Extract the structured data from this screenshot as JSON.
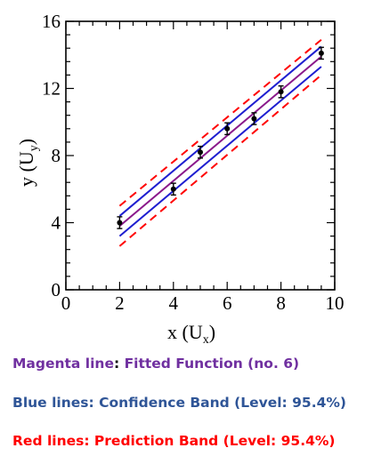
{
  "chart_data": {
    "type": "scatter",
    "xlabel_main": "x (U",
    "xlabel_sub": "x",
    "xlabel_end": ")",
    "ylabel_main": "y (U",
    "ylabel_sub": "y",
    "ylabel_end": ")",
    "xlim": [
      0,
      10
    ],
    "ylim": [
      0,
      16
    ],
    "x_ticks": [
      0,
      2,
      4,
      6,
      8,
      10
    ],
    "y_ticks": [
      0,
      4,
      8,
      12,
      16
    ],
    "points": [
      {
        "x": 2,
        "y": 4.0,
        "err": 0.35
      },
      {
        "x": 4,
        "y": 6.0,
        "err": 0.35
      },
      {
        "x": 5,
        "y": 8.2,
        "err": 0.35
      },
      {
        "x": 6,
        "y": 9.6,
        "err": 0.35
      },
      {
        "x": 7,
        "y": 10.2,
        "err": 0.35
      },
      {
        "x": 8,
        "y": 11.8,
        "err": 0.35
      },
      {
        "x": 9.5,
        "y": 14.1,
        "err": 0.35
      }
    ],
    "fit_line": {
      "x": [
        2,
        9.5
      ],
      "y": [
        3.8,
        13.9
      ],
      "color": "#8b1a8b"
    },
    "confidence_upper": {
      "x": [
        2,
        9.5
      ],
      "y": [
        4.4,
        14.5
      ],
      "color": "#1f1fd0"
    },
    "confidence_lower": {
      "x": [
        2,
        9.5
      ],
      "y": [
        3.2,
        13.3
      ],
      "color": "#1f1fd0"
    },
    "prediction_upper": {
      "x": [
        2,
        9.5
      ],
      "y": [
        5.0,
        14.9
      ],
      "color": "#ff0000"
    },
    "prediction_lower": {
      "x": [
        2,
        9.5
      ],
      "y": [
        2.6,
        12.8
      ],
      "color": "#ff0000"
    }
  },
  "legend": {
    "magenta_prefix": "Magenta line",
    "magenta_colon": ": ",
    "magenta_text": "Fitted Function (no. 6)",
    "blue_text": "Blue lines: Confidence Band (Level: 95.4%)",
    "red_text": "Red lines: Prediction Band (Level: 95.4%)"
  }
}
